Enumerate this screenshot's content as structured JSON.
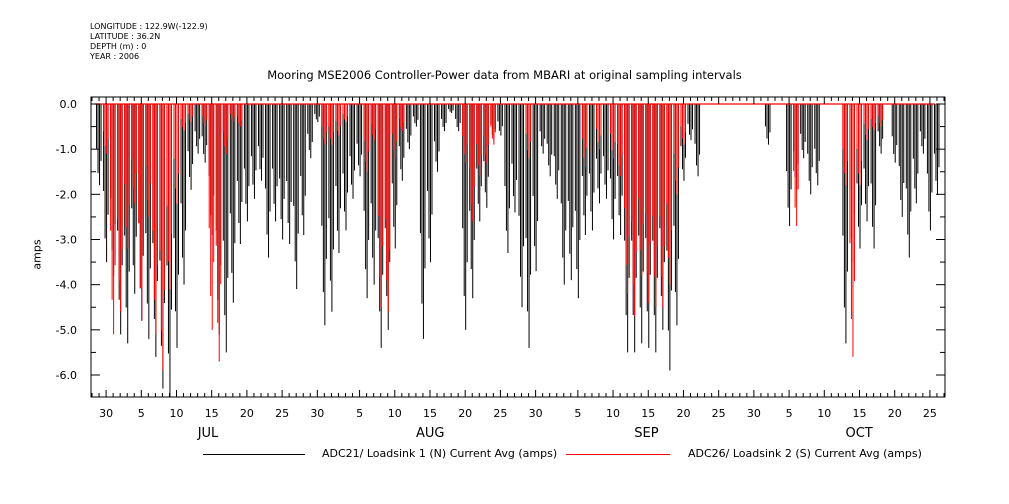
{
  "header": {
    "longitude": "LONGITUDE : 122.9W(-122.9)",
    "latitude": "LATITUDE : 36.2N",
    "depth": "DEPTH (m) : 0",
    "year": "YEAR : 2006"
  },
  "chart_data": {
    "type": "line",
    "title": "Mooring MSE2006 Controller-Power data from MBARI at original sampling intervals",
    "ylabel": "amps",
    "xlabel": "",
    "ylim": [
      -6.5,
      0.0
    ],
    "xlim": [
      "2006-06-28",
      "2006-10-27"
    ],
    "y_ticks": [
      "0.0",
      "-1.0",
      "-2.0",
      "-3.0",
      "-4.0",
      "-5.0",
      "-6.0"
    ],
    "x_tick_labels": [
      "30",
      "5",
      "10",
      "15",
      "20",
      "25",
      "30",
      "5",
      "10",
      "15",
      "20",
      "25",
      "30",
      "5",
      "10",
      "15",
      "20",
      "25",
      "30",
      "5",
      "10",
      "15",
      "20",
      "25"
    ],
    "month_labels": [
      "JUL",
      "AUG",
      "SEP",
      "OCT"
    ],
    "grid": false,
    "legend_position": "bottom",
    "series": [
      {
        "name": "ADC21/ Loadsink 1 (N) Current Avg (amps)",
        "color": "#000000",
        "spikes": [
          [
            "2006-06-29",
            -1.8
          ],
          [
            "2006-06-30",
            -3.5
          ],
          [
            "2006-07-01",
            -3.8
          ],
          [
            "2006-07-02",
            -5.1
          ],
          [
            "2006-07-03",
            -5.3
          ],
          [
            "2006-07-04",
            -4.2
          ],
          [
            "2006-07-05",
            -4.8
          ],
          [
            "2006-07-06",
            -5.2
          ],
          [
            "2006-07-07",
            -5.6
          ],
          [
            "2006-07-08",
            -6.3
          ],
          [
            "2006-07-09",
            -6.5
          ],
          [
            "2006-07-10",
            -5.4
          ],
          [
            "2006-07-11",
            -4.0
          ],
          [
            "2006-07-12",
            -1.9
          ],
          [
            "2006-07-13",
            -1.1
          ],
          [
            "2006-07-14",
            -1.3
          ],
          [
            "2006-07-15",
            -2.9
          ],
          [
            "2006-07-16",
            -5.1
          ],
          [
            "2006-07-17",
            -5.5
          ],
          [
            "2006-07-18",
            -4.4
          ],
          [
            "2006-07-19",
            -3.1
          ],
          [
            "2006-07-20",
            -2.6
          ],
          [
            "2006-07-21",
            -2.1
          ],
          [
            "2006-07-22",
            -1.7
          ],
          [
            "2006-07-23",
            -3.4
          ],
          [
            "2006-07-24",
            -2.6
          ],
          [
            "2006-07-25",
            -3.0
          ],
          [
            "2006-07-26",
            -3.1
          ],
          [
            "2006-07-27",
            -4.1
          ],
          [
            "2006-07-28",
            -2.9
          ],
          [
            "2006-07-29",
            -1.2
          ],
          [
            "2006-07-30",
            -0.4
          ],
          [
            "2006-07-31",
            -4.9
          ],
          [
            "2006-08-01",
            -4.6
          ],
          [
            "2006-08-02",
            -3.3
          ],
          [
            "2006-08-03",
            -2.8
          ],
          [
            "2006-08-04",
            -2.1
          ],
          [
            "2006-08-05",
            -1.6
          ],
          [
            "2006-08-06",
            -4.3
          ],
          [
            "2006-08-07",
            -4.0
          ],
          [
            "2006-08-08",
            -5.4
          ],
          [
            "2006-08-09",
            -5.0
          ],
          [
            "2006-08-10",
            -3.2
          ],
          [
            "2006-08-11",
            -1.7
          ],
          [
            "2006-08-12",
            -1.0
          ],
          [
            "2006-08-13",
            -0.5
          ],
          [
            "2006-08-14",
            -5.2
          ],
          [
            "2006-08-15",
            -3.5
          ],
          [
            "2006-08-16",
            -1.5
          ],
          [
            "2006-08-17",
            -0.6
          ],
          [
            "2006-08-18",
            -0.2
          ],
          [
            "2006-08-19",
            -0.6
          ],
          [
            "2006-08-20",
            -5.0
          ],
          [
            "2006-08-21",
            -4.3
          ],
          [
            "2006-08-22",
            -2.6
          ],
          [
            "2006-08-23",
            -2.3
          ],
          [
            "2006-08-24",
            -0.8
          ],
          [
            "2006-08-25",
            -0.7
          ],
          [
            "2006-08-26",
            -3.3
          ],
          [
            "2006-08-27",
            -2.4
          ],
          [
            "2006-08-28",
            -4.5
          ],
          [
            "2006-08-29",
            -5.4
          ],
          [
            "2006-08-30",
            -3.7
          ],
          [
            "2006-08-31",
            -1.1
          ],
          [
            "2006-09-01",
            -1.6
          ],
          [
            "2006-09-02",
            -2.1
          ],
          [
            "2006-09-03",
            -4.0
          ],
          [
            "2006-09-04",
            -3.9
          ],
          [
            "2006-09-05",
            -4.3
          ],
          [
            "2006-09-06",
            -2.9
          ],
          [
            "2006-09-07",
            -2.8
          ],
          [
            "2006-09-08",
            -2.2
          ],
          [
            "2006-09-09",
            -2.1
          ],
          [
            "2006-09-10",
            -3.0
          ],
          [
            "2006-09-11",
            -2.9
          ],
          [
            "2006-09-12",
            -5.5
          ],
          [
            "2006-09-13",
            -5.5
          ],
          [
            "2006-09-14",
            -5.3
          ],
          [
            "2006-09-15",
            -5.4
          ],
          [
            "2006-09-16",
            -5.5
          ],
          [
            "2006-09-17",
            -5.0
          ],
          [
            "2006-09-18",
            -5.9
          ],
          [
            "2006-09-19",
            -4.9
          ],
          [
            "2006-09-20",
            -1.7
          ],
          [
            "2006-09-21",
            -0.8
          ],
          [
            "2006-09-22",
            -1.6
          ],
          [
            "2006-10-02",
            -0.9
          ],
          [
            "2006-10-05",
            -2.7
          ],
          [
            "2006-10-06",
            -1.9
          ],
          [
            "2006-10-07",
            -1.2
          ],
          [
            "2006-10-08",
            -2.0
          ],
          [
            "2006-10-09",
            -1.8
          ],
          [
            "2006-10-13",
            -5.3
          ],
          [
            "2006-10-14",
            -3.5
          ],
          [
            "2006-10-15",
            -3.2
          ],
          [
            "2006-10-16",
            -2.6
          ],
          [
            "2006-10-17",
            -3.2
          ],
          [
            "2006-10-18",
            -1.1
          ],
          [
            "2006-10-20",
            -1.3
          ],
          [
            "2006-10-21",
            -2.5
          ],
          [
            "2006-10-22",
            -3.4
          ],
          [
            "2006-10-23",
            -2.2
          ],
          [
            "2006-10-24",
            -1.1
          ],
          [
            "2006-10-25",
            -2.8
          ],
          [
            "2006-10-26",
            -2.0
          ]
        ]
      },
      {
        "name": "ADC26/ Loadsink 2 (S) Current Avg (amps)",
        "color": "#ff0000",
        "spikes": [
          [
            "2006-06-30",
            -1.1
          ],
          [
            "2006-07-01",
            -5.1
          ],
          [
            "2006-07-02",
            -4.6
          ],
          [
            "2006-07-03",
            -3.2
          ],
          [
            "2006-07-04",
            -2.2
          ],
          [
            "2006-07-05",
            -4.8
          ],
          [
            "2006-07-06",
            -2.5
          ],
          [
            "2006-07-07",
            -5.1
          ],
          [
            "2006-07-08",
            -5.9
          ],
          [
            "2006-07-09",
            -4.1
          ],
          [
            "2006-07-10",
            -2.2
          ],
          [
            "2006-07-11",
            -0.6
          ],
          [
            "2006-07-12",
            -0.4
          ],
          [
            "2006-07-14",
            -0.5
          ],
          [
            "2006-07-15",
            -5.0
          ],
          [
            "2006-07-16",
            -5.7
          ],
          [
            "2006-07-17",
            -1.1
          ],
          [
            "2006-07-18",
            -0.4
          ],
          [
            "2006-07-19",
            -0.5
          ],
          [
            "2006-07-31",
            -0.9
          ],
          [
            "2006-08-01",
            -0.9
          ],
          [
            "2006-08-02",
            -0.7
          ],
          [
            "2006-08-03",
            -0.4
          ],
          [
            "2006-08-06",
            -1.5
          ],
          [
            "2006-08-07",
            -0.8
          ],
          [
            "2006-08-08",
            -4.5
          ],
          [
            "2006-08-09",
            -4.6
          ],
          [
            "2006-08-10",
            -1.2
          ],
          [
            "2006-08-11",
            -0.6
          ],
          [
            "2006-08-20",
            -1.3
          ],
          [
            "2006-08-21",
            -2.6
          ],
          [
            "2006-08-22",
            -1.6
          ],
          [
            "2006-08-23",
            -1.3
          ],
          [
            "2006-08-24",
            -0.9
          ],
          [
            "2006-08-29",
            -1.2
          ],
          [
            "2006-09-06",
            -1.4
          ],
          [
            "2006-09-08",
            -1.0
          ],
          [
            "2006-09-10",
            -1.2
          ],
          [
            "2006-09-11",
            -1.6
          ],
          [
            "2006-09-12",
            -4.2
          ],
          [
            "2006-09-13",
            -4.7
          ],
          [
            "2006-09-14",
            -3.8
          ],
          [
            "2006-09-15",
            -4.4
          ],
          [
            "2006-09-16",
            -4.5
          ],
          [
            "2006-09-17",
            -4.5
          ],
          [
            "2006-09-18",
            -4.0
          ],
          [
            "2006-09-19",
            -2.0
          ],
          [
            "2006-09-20",
            -0.9
          ],
          [
            "2006-10-06",
            -2.7
          ],
          [
            "2006-10-13",
            -1.8
          ],
          [
            "2006-10-14",
            -5.6
          ],
          [
            "2006-10-15",
            -1.8
          ],
          [
            "2006-10-16",
            -0.8
          ],
          [
            "2006-10-17",
            -0.6
          ],
          [
            "2006-10-18",
            -0.5
          ]
        ]
      }
    ]
  }
}
